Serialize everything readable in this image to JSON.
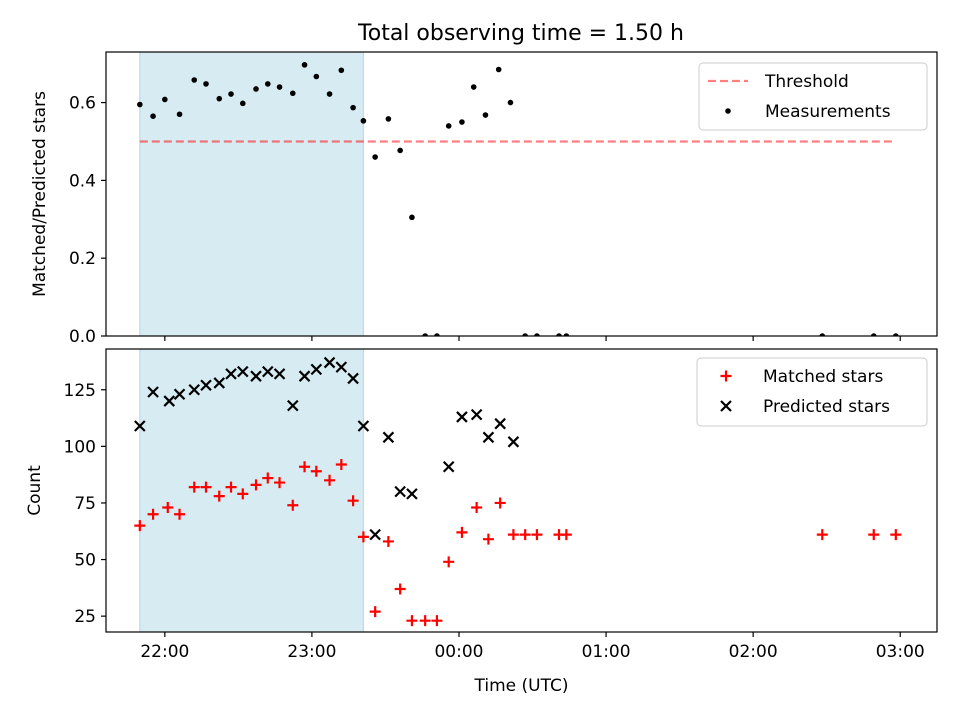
{
  "title": "Total observing time = 1.50 h",
  "colors": {
    "shade": "#add8e6",
    "threshold": "#ff0000",
    "measurements": "#000000",
    "matched": "#ff0000",
    "predicted": "#000000"
  },
  "chart_data": [
    {
      "type": "scatter",
      "panel": "top",
      "ylabel": "Matched/Predicted stars",
      "xlim": [
        21.6,
        27.25
      ],
      "ylim": [
        0.0,
        0.73
      ],
      "yticks": [
        0.0,
        0.2,
        0.4,
        0.6
      ],
      "ytick_labels": [
        "0.0",
        "0.2",
        "0.4",
        "0.6"
      ],
      "shaded_span": [
        21.83,
        23.35
      ],
      "legend_position": "upper right",
      "series": [
        {
          "name": "Threshold",
          "kind": "dashed-line",
          "x": [
            21.83,
            26.97
          ],
          "y": [
            0.5,
            0.5
          ]
        },
        {
          "name": "Measurements",
          "kind": "dot",
          "x": [
            21.83,
            21.92,
            22.0,
            22.1,
            22.2,
            22.28,
            22.37,
            22.45,
            22.53,
            22.62,
            22.7,
            22.78,
            22.87,
            22.95,
            23.03,
            23.12,
            23.2,
            23.28,
            23.35,
            23.43,
            23.52,
            23.6,
            23.68,
            23.77,
            23.85,
            23.93,
            24.02,
            24.1,
            24.18,
            24.27,
            24.35,
            24.45,
            24.53,
            24.68,
            24.73,
            26.47,
            26.82,
            26.97
          ],
          "y": [
            0.595,
            0.565,
            0.608,
            0.57,
            0.658,
            0.648,
            0.61,
            0.622,
            0.598,
            0.635,
            0.648,
            0.64,
            0.624,
            0.697,
            0.667,
            0.622,
            0.683,
            0.587,
            0.553,
            0.46,
            0.558,
            0.477,
            0.305,
            0.0,
            0.0,
            0.54,
            0.55,
            0.64,
            0.568,
            0.685,
            0.6,
            0.0,
            0.0,
            0.0,
            0.0,
            0.0,
            0.0,
            0.0
          ]
        }
      ]
    },
    {
      "type": "scatter",
      "panel": "bottom",
      "xlabel": "Time (UTC)",
      "ylabel": "Count",
      "xlim": [
        21.6,
        27.25
      ],
      "ylim": [
        18,
        143
      ],
      "yticks": [
        25,
        50,
        75,
        100,
        125
      ],
      "ytick_labels": [
        "25",
        "50",
        "75",
        "100",
        "125"
      ],
      "xticks": [
        22,
        23,
        24,
        25,
        26,
        27
      ],
      "xtick_labels": [
        "22:00",
        "23:00",
        "00:00",
        "01:00",
        "02:00",
        "03:00"
      ],
      "shaded_span": [
        21.83,
        23.35
      ],
      "legend_position": "upper right",
      "series": [
        {
          "name": "Matched stars",
          "kind": "plus",
          "x": [
            21.83,
            21.92,
            22.02,
            22.1,
            22.2,
            22.28,
            22.37,
            22.45,
            22.53,
            22.62,
            22.7,
            22.78,
            22.87,
            22.95,
            23.03,
            23.12,
            23.2,
            23.28,
            23.35,
            23.43,
            23.52,
            23.6,
            23.68,
            23.77,
            23.85,
            23.93,
            24.02,
            24.12,
            24.2,
            24.28,
            24.37,
            24.45,
            24.53,
            24.68,
            24.73,
            26.47,
            26.82,
            26.97
          ],
          "y": [
            65,
            70,
            73,
            70,
            82,
            82,
            78,
            82,
            79,
            83,
            86,
            84,
            74,
            91,
            89,
            85,
            92,
            76,
            60,
            27,
            58,
            37,
            23,
            23,
            23,
            49,
            62,
            73,
            59,
            75,
            61,
            61,
            61,
            61,
            61,
            61,
            61,
            61
          ]
        },
        {
          "name": "Predicted stars",
          "kind": "x",
          "x": [
            21.83,
            21.92,
            22.03,
            22.1,
            22.2,
            22.28,
            22.37,
            22.45,
            22.53,
            22.62,
            22.7,
            22.78,
            22.87,
            22.95,
            23.03,
            23.12,
            23.2,
            23.28,
            23.35,
            23.43,
            23.52,
            23.6,
            23.68,
            23.93,
            24.02,
            24.12,
            24.2,
            24.28,
            24.37
          ],
          "y": [
            109,
            124,
            120,
            123,
            125,
            127,
            128,
            132,
            133,
            131,
            133,
            132,
            118,
            131,
            134,
            137,
            135,
            130,
            109,
            61,
            104,
            80,
            79,
            91,
            113,
            114,
            104,
            110,
            102
          ]
        }
      ]
    }
  ]
}
